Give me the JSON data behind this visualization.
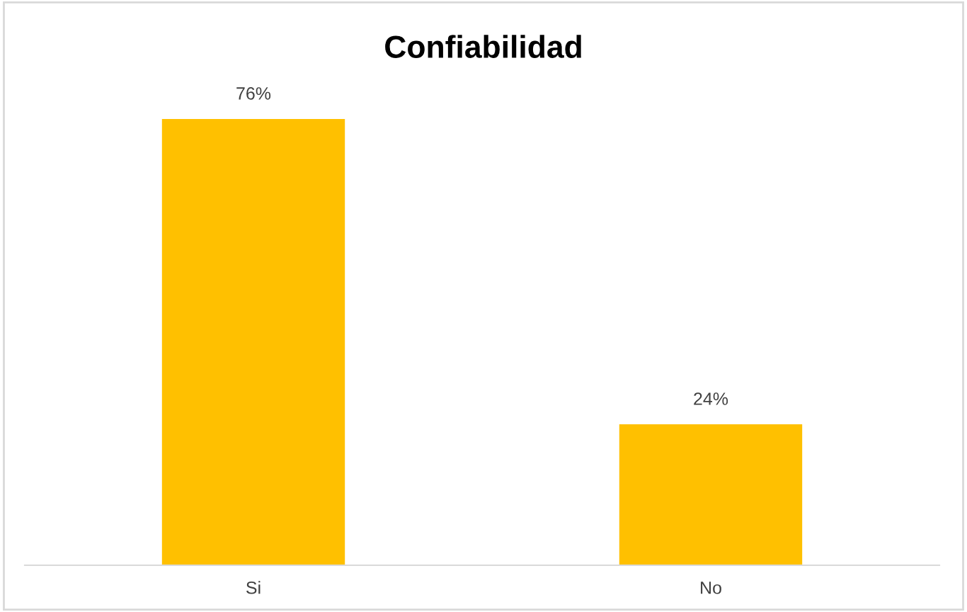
{
  "chart_data": {
    "type": "bar",
    "title": "Confiabilidad",
    "categories": [
      "Si",
      "No"
    ],
    "values": [
      76,
      24
    ],
    "value_labels": [
      "76%",
      "24%"
    ],
    "color": "#ffc000",
    "grid": false,
    "legend": false
  }
}
